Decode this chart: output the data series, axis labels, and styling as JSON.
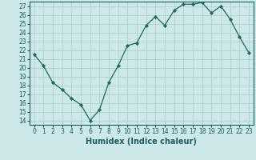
{
  "x": [
    0,
    1,
    2,
    3,
    4,
    5,
    6,
    7,
    8,
    9,
    10,
    11,
    12,
    13,
    14,
    15,
    16,
    17,
    18,
    19,
    20,
    21,
    22,
    23
  ],
  "y": [
    21.5,
    20.2,
    18.3,
    17.5,
    16.5,
    15.8,
    14.0,
    15.2,
    18.3,
    20.2,
    22.5,
    22.8,
    24.8,
    25.8,
    24.8,
    26.5,
    27.2,
    27.2,
    27.4,
    26.2,
    27.0,
    25.5,
    23.5,
    21.7
  ],
  "line_color": "#1a6b5a",
  "marker": "D",
  "marker_size": 2.2,
  "bg_color": "#cce8e8",
  "grid_color": "#aacccc",
  "xlabel": "Humidex (Indice chaleur)",
  "xlim": [
    -0.5,
    23.5
  ],
  "ylim": [
    13.5,
    27.5
  ],
  "yticks": [
    14,
    15,
    16,
    17,
    18,
    19,
    20,
    21,
    22,
    23,
    24,
    25,
    26,
    27
  ],
  "xticks": [
    0,
    1,
    2,
    3,
    4,
    5,
    6,
    7,
    8,
    9,
    10,
    11,
    12,
    13,
    14,
    15,
    16,
    17,
    18,
    19,
    20,
    21,
    22,
    23
  ],
  "font_color": "#1a5f5a",
  "tick_fontsize": 5.5,
  "label_fontsize": 7.0
}
